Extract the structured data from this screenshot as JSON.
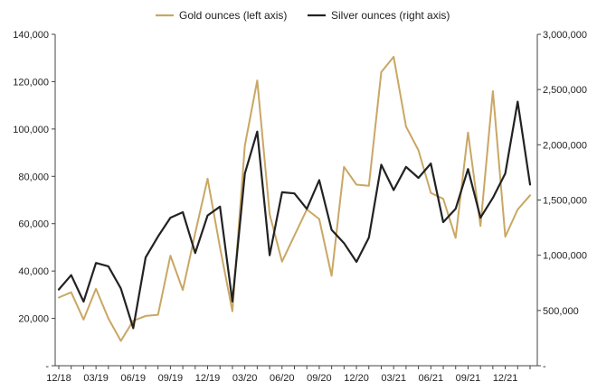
{
  "chart_data": {
    "type": "line",
    "title": "",
    "xlabel": "",
    "ylabel_left": "",
    "ylabel_right": "",
    "x_tick_labels": [
      "12/18",
      "03/19",
      "06/19",
      "09/19",
      "12/19",
      "03/20",
      "06/20",
      "09/20",
      "12/20",
      "03/21",
      "06/21",
      "09/21",
      "12/21"
    ],
    "x": [
      "12/18",
      "01/19",
      "02/19",
      "03/19",
      "04/19",
      "05/19",
      "06/19",
      "07/19",
      "08/19",
      "09/19",
      "10/19",
      "11/19",
      "12/19",
      "01/20",
      "02/20",
      "03/20",
      "04/20",
      "05/20",
      "06/20",
      "07/20",
      "08/20",
      "09/20",
      "10/20",
      "11/20",
      "12/20",
      "01/21",
      "02/21",
      "03/21",
      "04/21",
      "05/21",
      "06/21",
      "07/21",
      "08/21",
      "09/21",
      "10/21",
      "11/21",
      "12/21",
      "01/22",
      "02/22"
    ],
    "left_axis": {
      "ylim": [
        0,
        140000
      ],
      "ticks": [
        0,
        20000,
        40000,
        60000,
        80000,
        100000,
        120000,
        140000
      ],
      "tick_labels": [
        "-",
        "20,000",
        "40,000",
        "60,000",
        "80,000",
        "100,000",
        "120,000",
        "140,000"
      ]
    },
    "right_axis": {
      "ylim": [
        0,
        3000000
      ],
      "ticks": [
        0,
        500000,
        1000000,
        1500000,
        2000000,
        2500000,
        3000000
      ],
      "tick_labels": [
        "-",
        "500,000",
        "1,000,000",
        "1,500,000",
        "2,000,000",
        "2,500,000",
        "3,000,000"
      ]
    },
    "legend_position": "top-center",
    "grid": false,
    "series": [
      {
        "name": "Gold ounces (left axis)",
        "axis": "left",
        "color": "#C9A764",
        "values": [
          28800,
          31000,
          19500,
          32500,
          20000,
          10500,
          19000,
          21000,
          21500,
          46500,
          32000,
          56000,
          79000,
          50000,
          23000,
          93000,
          120500,
          64000,
          44000,
          55000,
          66000,
          62000,
          38000,
          84000,
          76500,
          76000,
          124000,
          130500,
          101000,
          91000,
          73000,
          70500,
          54000,
          98500,
          59000,
          116000,
          54500,
          66000,
          72000
        ]
      },
      {
        "name": "Silver ounces (right axis)",
        "axis": "right",
        "color": "#222222",
        "values": [
          690000,
          820000,
          580000,
          930000,
          900000,
          700000,
          340000,
          980000,
          1170000,
          1340000,
          1390000,
          1020000,
          1360000,
          1440000,
          580000,
          1740000,
          2120000,
          1000000,
          1570000,
          1560000,
          1420000,
          1680000,
          1230000,
          1110000,
          940000,
          1160000,
          1820000,
          1590000,
          1800000,
          1700000,
          1830000,
          1300000,
          1420000,
          1780000,
          1340000,
          1520000,
          1740000,
          2390000,
          1640000
        ]
      }
    ]
  }
}
